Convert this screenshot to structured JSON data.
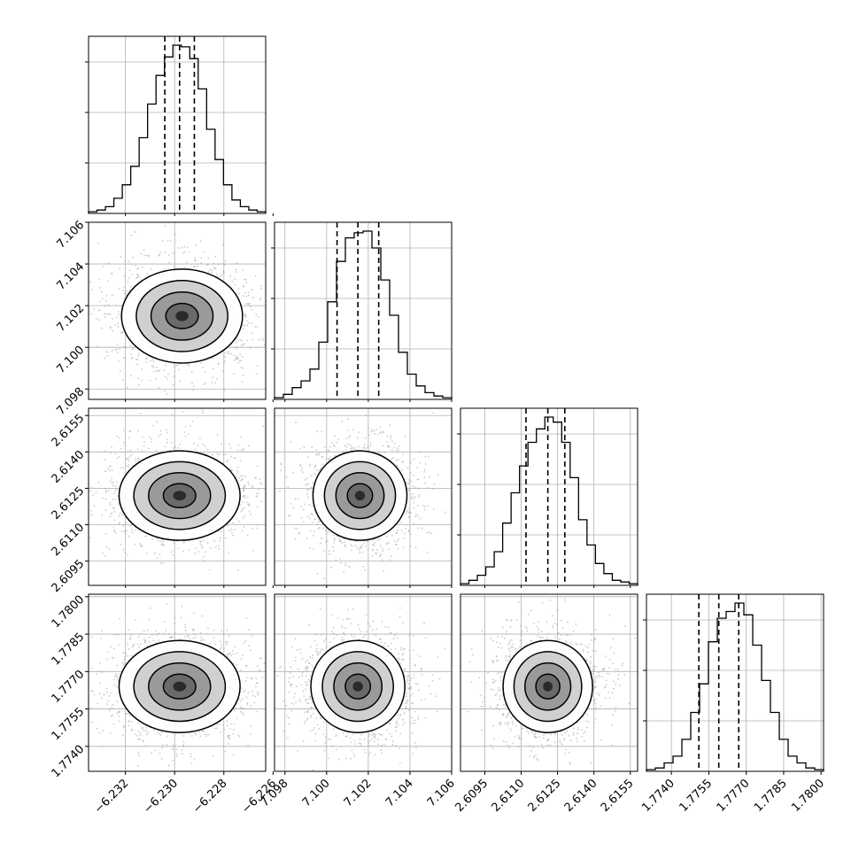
{
  "chart_data": {
    "type": "corner",
    "parameters": [
      {
        "index": 0,
        "range": [
          -6.2335,
          -6.2263
        ],
        "ticks": [
          "−6.232",
          "−6.230",
          "−6.228",
          "−6.226"
        ],
        "tick_values": [
          -6.232,
          -6.23,
          -6.228,
          -6.226
        ],
        "quantiles": [
          -6.2304,
          -6.2298,
          -6.2292
        ]
      },
      {
        "index": 1,
        "range": [
          7.0975,
          7.106
        ],
        "ticks": [
          "7.098",
          "7.100",
          "7.102",
          "7.104",
          "7.106"
        ],
        "tick_values": [
          7.098,
          7.1,
          7.102,
          7.104,
          7.106
        ],
        "quantiles": [
          7.1005,
          7.1015,
          7.1025
        ]
      },
      {
        "index": 2,
        "range": [
          2.6085,
          2.6158
        ],
        "ticks": [
          "2.6095",
          "2.6110",
          "2.6125",
          "2.6140",
          "2.6155"
        ],
        "tick_values": [
          2.6095,
          2.611,
          2.6125,
          2.614,
          2.6155
        ],
        "quantiles": [
          2.6112,
          2.6121,
          2.6128
        ]
      },
      {
        "index": 3,
        "range": [
          1.773,
          1.7801
        ],
        "ticks": [
          "1.7740",
          "1.7755",
          "1.7770",
          "1.7785",
          "1.7800"
        ],
        "tick_values": [
          1.774,
          1.7755,
          1.777,
          1.7785,
          1.78
        ],
        "quantiles": [
          1.7751,
          1.7759,
          1.7767
        ]
      }
    ],
    "histograms": [
      [
        1,
        2,
        4,
        9,
        17,
        28,
        45,
        65,
        82,
        93,
        100,
        99,
        92,
        74,
        50,
        32,
        17,
        8,
        4,
        2,
        1
      ],
      [
        1,
        3,
        7,
        11,
        18,
        34,
        58,
        82,
        96,
        99,
        100,
        90,
        71,
        50,
        28,
        15,
        8,
        4,
        2,
        1
      ],
      [
        1,
        3,
        6,
        11,
        20,
        37,
        55,
        71,
        85,
        93,
        100,
        97,
        85,
        64,
        39,
        24,
        13,
        7,
        3,
        2,
        1
      ],
      [
        1,
        2,
        5,
        9,
        19,
        35,
        52,
        77,
        91,
        95,
        100,
        93,
        75,
        54,
        35,
        19,
        9,
        5,
        2,
        1
      ]
    ],
    "pair_means": [
      {
        "row": 1,
        "col": 0,
        "mean": [
          -6.2297,
          7.1015
        ],
        "sigma": [
          0.0012,
          0.0011
        ]
      },
      {
        "row": 2,
        "col": 0,
        "mean": [
          -6.2298,
          2.6122
        ],
        "sigma": [
          0.0012,
          0.0009
        ]
      },
      {
        "row": 2,
        "col": 1,
        "mean": [
          7.1016,
          2.6122
        ],
        "sigma": [
          0.0011,
          0.0009
        ]
      },
      {
        "row": 3,
        "col": 0,
        "mean": [
          -6.2298,
          1.7764
        ],
        "sigma": [
          0.0012,
          0.0009
        ]
      },
      {
        "row": 3,
        "col": 1,
        "mean": [
          7.1015,
          1.7764
        ],
        "sigma": [
          0.0011,
          0.0009
        ]
      },
      {
        "row": 3,
        "col": 2,
        "mean": [
          2.6121,
          1.7764
        ],
        "sigma": [
          0.0009,
          0.0009
        ]
      }
    ],
    "grid": true,
    "colors": {
      "hist": "#000000",
      "points": "#9e9e9e",
      "contour": "#000000",
      "grid": "#b0b0b0"
    }
  }
}
